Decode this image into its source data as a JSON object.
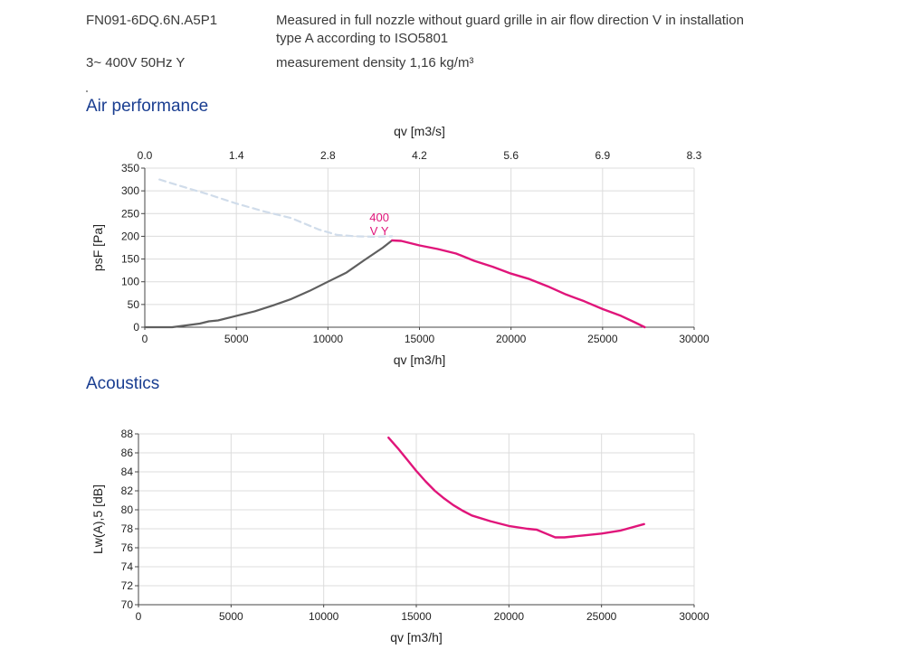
{
  "header": {
    "model": "FN091-6DQ.6N.A5P1",
    "description_line1": "Measured in full nozzle without guard grille in air flow direction V in installation",
    "description_line2": "type A according to ISO5801",
    "supply": "3~ 400V 50Hz Y",
    "density": "measurement density 1,16 kg/m³"
  },
  "sections": {
    "air_performance": "Air performance",
    "acoustics": "Acoustics"
  },
  "colors": {
    "curve_accent": "#e0157a",
    "curve_dark": "#5f5f5f",
    "curve_dashed": "#d0dcea",
    "grid": "#dcdcdc",
    "title_blue": "#1a3e91"
  },
  "chart_data": [
    {
      "type": "line",
      "title": "Air performance",
      "xlabel": "qv [m3/h]",
      "ylabel": "psF [Pa]",
      "x2label": "qv [m3/s]",
      "xlim": [
        0,
        30000
      ],
      "ylim": [
        0,
        350
      ],
      "x_ticks": [
        "0",
        "5000",
        "10000",
        "15000",
        "20000",
        "25000",
        "30000"
      ],
      "x2_ticks": [
        "0.0",
        "1.4",
        "2.8",
        "4.2",
        "5.6",
        "6.9",
        "8.3"
      ],
      "y_ticks": [
        "0",
        "50",
        "100",
        "150",
        "200",
        "250",
        "300",
        "350"
      ],
      "grid": true,
      "curve_label": [
        "400",
        "V Y"
      ],
      "series": [
        {
          "style": "dashed",
          "x": [
            800,
            2000,
            3500,
            5000,
            6500,
            8000,
            9500,
            10500,
            11500,
            12500,
            13500
          ],
          "y": [
            325,
            310,
            292,
            272,
            255,
            240,
            215,
            203,
            200,
            199,
            200
          ]
        },
        {
          "style": "dark",
          "x": [
            0,
            1500,
            3000,
            3500,
            4000,
            5000,
            6000,
            7000,
            8000,
            9000,
            10000,
            11000,
            12000,
            13000,
            13500
          ],
          "y": [
            0,
            0,
            8,
            13,
            15,
            25,
            35,
            48,
            62,
            80,
            100,
            120,
            148,
            175,
            191
          ]
        },
        {
          "style": "accent",
          "x": [
            13500,
            14000,
            15000,
            16000,
            17000,
            18000,
            19000,
            20000,
            21000,
            22000,
            23000,
            24000,
            25000,
            26000,
            26800,
            27300
          ],
          "y": [
            191,
            190,
            180,
            172,
            162,
            146,
            133,
            118,
            106,
            90,
            72,
            57,
            40,
            25,
            10,
            0
          ]
        }
      ]
    },
    {
      "type": "line",
      "title": "Acoustics",
      "xlabel": "qv [m3/h]",
      "ylabel": "Lw(A),5 [dB]",
      "xlim": [
        0,
        30000
      ],
      "ylim": [
        70,
        88
      ],
      "x_ticks": [
        "0",
        "5000",
        "10000",
        "15000",
        "20000",
        "25000",
        "30000"
      ],
      "y_ticks": [
        "70",
        "72",
        "74",
        "76",
        "78",
        "80",
        "82",
        "84",
        "86",
        "88"
      ],
      "grid": true,
      "series": [
        {
          "style": "accent",
          "x": [
            13500,
            14000,
            14500,
            15000,
            15500,
            16000,
            16500,
            17000,
            17500,
            18000,
            19000,
            20000,
            21000,
            21500,
            22000,
            22500,
            23000,
            24000,
            25000,
            26000,
            27300
          ],
          "y": [
            87.6,
            86.5,
            85.3,
            84.1,
            83.0,
            82.0,
            81.2,
            80.5,
            79.9,
            79.4,
            78.8,
            78.3,
            78.0,
            77.9,
            77.5,
            77.1,
            77.1,
            77.3,
            77.5,
            77.8,
            78.5
          ]
        }
      ]
    }
  ]
}
